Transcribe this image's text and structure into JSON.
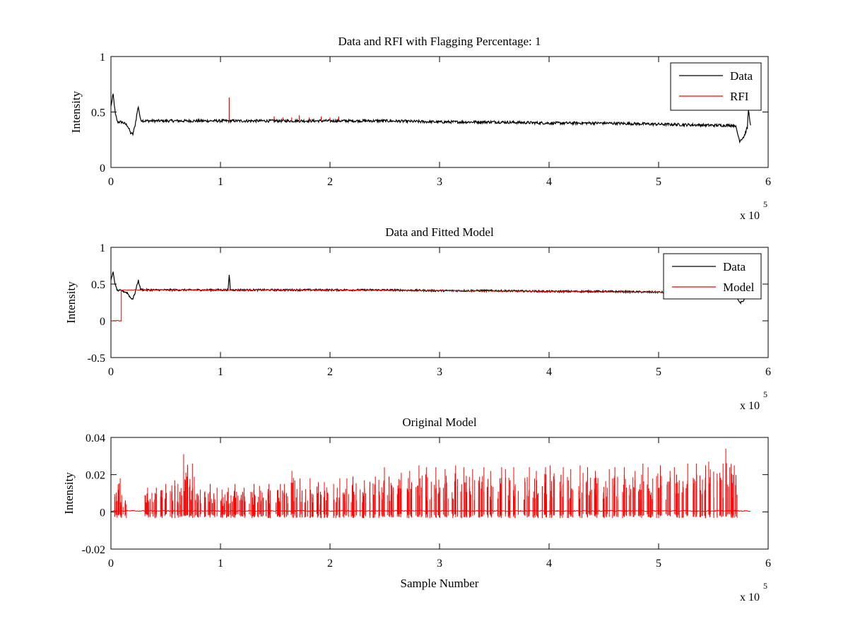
{
  "chart_data": [
    {
      "type": "line",
      "title": "Data and RFI with Flagging Percentage: 1",
      "xlabel": "",
      "ylabel": "Intensity",
      "xlim": [
        0,
        600000
      ],
      "ylim": [
        0,
        1
      ],
      "xticks": [
        0,
        1,
        2,
        3,
        4,
        5,
        6
      ],
      "xtick_labels": [
        "0",
        "1",
        "2",
        "3",
        "4",
        "5",
        "6"
      ],
      "yticks": [
        0,
        0.5,
        1
      ],
      "ytick_labels": [
        "0",
        "0.5",
        "1"
      ],
      "x_multiplier": "x 10",
      "x_multiplier_exp": "5",
      "legend_position": "top-right",
      "colors": {
        "data": "#000000",
        "rfi": "#ff0000"
      },
      "series": [
        {
          "name": "Data",
          "x": [
            0,
            2000,
            4000,
            6000,
            10000,
            15000,
            18000,
            20000,
            22000,
            24000,
            25000,
            27000,
            30000,
            50000,
            80000,
            100000,
            108000,
            110000,
            150000,
            200000,
            250000,
            300000,
            350000,
            400000,
            450000,
            500000,
            550000,
            570000,
            574000,
            578000,
            581000,
            582000,
            584000
          ],
          "y": [
            0.55,
            0.66,
            0.48,
            0.41,
            0.41,
            0.38,
            0.31,
            0.3,
            0.38,
            0.5,
            0.55,
            0.43,
            0.42,
            0.42,
            0.42,
            0.42,
            0.42,
            0.42,
            0.42,
            0.42,
            0.42,
            0.41,
            0.41,
            0.4,
            0.4,
            0.39,
            0.38,
            0.38,
            0.24,
            0.28,
            0.36,
            0.52,
            0.38
          ]
        },
        {
          "name": "RFI",
          "spikes": [
            {
              "x": 108000,
              "y0": 0.42,
              "y1": 0.63
            },
            {
              "x": 149000,
              "y0": 0.42,
              "y1": 0.46
            },
            {
              "x": 157000,
              "y0": 0.42,
              "y1": 0.45
            },
            {
              "x": 165000,
              "y0": 0.42,
              "y1": 0.45
            },
            {
              "x": 172000,
              "y0": 0.42,
              "y1": 0.47
            },
            {
              "x": 181000,
              "y0": 0.42,
              "y1": 0.45
            },
            {
              "x": 192000,
              "y0": 0.42,
              "y1": 0.46
            },
            {
              "x": 200000,
              "y0": 0.42,
              "y1": 0.45
            },
            {
              "x": 208000,
              "y0": 0.42,
              "y1": 0.46
            }
          ]
        }
      ]
    },
    {
      "type": "line",
      "title": "Data and Fitted Model",
      "xlabel": "",
      "ylabel": "Intensity",
      "xlim": [
        0,
        600000
      ],
      "ylim": [
        -0.5,
        1
      ],
      "xticks": [
        0,
        1,
        2,
        3,
        4,
        5,
        6
      ],
      "xtick_labels": [
        "0",
        "1",
        "2",
        "3",
        "4",
        "5",
        "6"
      ],
      "yticks": [
        -0.5,
        0,
        0.5,
        1
      ],
      "ytick_labels": [
        "-0.5",
        "0",
        "0.5",
        "1"
      ],
      "x_multiplier": "x 10",
      "x_multiplier_exp": "5",
      "legend_position": "top-right",
      "colors": {
        "data": "#000000",
        "model": "#ff0000"
      },
      "series": [
        {
          "name": "Data",
          "x": [
            0,
            2000,
            4000,
            6000,
            10000,
            15000,
            18000,
            20000,
            22000,
            24000,
            25000,
            27000,
            30000,
            50000,
            80000,
            100000,
            107000,
            108000,
            109000,
            150000,
            200000,
            250000,
            300000,
            350000,
            400000,
            450000,
            500000,
            550000,
            570000,
            574000,
            578000,
            581000,
            582000,
            584000
          ],
          "y": [
            0.55,
            0.66,
            0.48,
            0.41,
            0.41,
            0.38,
            0.31,
            0.3,
            0.38,
            0.5,
            0.55,
            0.43,
            0.42,
            0.42,
            0.42,
            0.42,
            0.42,
            0.63,
            0.42,
            0.42,
            0.42,
            0.42,
            0.41,
            0.41,
            0.4,
            0.4,
            0.39,
            0.38,
            0.38,
            0.24,
            0.28,
            0.36,
            0.52,
            0.38
          ]
        },
        {
          "name": "Model",
          "x": [
            0,
            9500,
            9500,
            12000,
            50000,
            100000,
            200000,
            300000,
            400000,
            500000,
            584000
          ],
          "y": [
            0,
            0,
            0.42,
            0.42,
            0.42,
            0.42,
            0.42,
            0.41,
            0.4,
            0.39,
            0.38
          ]
        }
      ]
    },
    {
      "type": "line",
      "title": "Original Model",
      "xlabel": "Sample Number",
      "ylabel": "Intensity",
      "xlim": [
        0,
        600000
      ],
      "ylim": [
        -0.02,
        0.04
      ],
      "xticks": [
        0,
        1,
        2,
        3,
        4,
        5,
        6
      ],
      "xtick_labels": [
        "0",
        "1",
        "2",
        "3",
        "4",
        "5",
        "6"
      ],
      "yticks": [
        -0.02,
        0,
        0.02,
        0.04
      ],
      "ytick_labels": [
        "-0.02",
        "0",
        "0.02",
        "0.04"
      ],
      "x_multiplier": "x 10",
      "x_multiplier_exp": "5",
      "colors": {
        "model": "#ff0000"
      },
      "series": [
        {
          "name": "",
          "x_range": [
            0,
            584000
          ],
          "baseline": 0.0005,
          "bursts_x": [
            5000,
            10000,
            32000,
            38000,
            47000,
            55000,
            61000,
            68000,
            73000,
            79000,
            87000,
            93000,
            100000,
            107000,
            113000,
            119000,
            128000,
            135000,
            143000,
            151000,
            158000,
            166000,
            174000,
            181000,
            189000,
            196000,
            205000,
            213000,
            221000,
            229000,
            238000,
            246000,
            254000,
            263000,
            272000,
            280000,
            289000,
            297000,
            305000,
            313000,
            321000,
            329000,
            337000,
            345000,
            353000,
            361000,
            369000,
            378000,
            386000,
            394000,
            402000,
            410000,
            418000,
            427000,
            435000,
            443000,
            451000,
            459000,
            467000,
            475000,
            483000,
            491000,
            499000,
            507000,
            515000,
            523000,
            531000,
            539000,
            547000,
            555000,
            563000,
            568000
          ],
          "bursts_peak": [
            0.018,
            0.009,
            0.013,
            0.013,
            0.015,
            0.017,
            0.015,
            0.031,
            0.026,
            0.012,
            0.015,
            0.013,
            0.012,
            0.013,
            0.015,
            0.013,
            0.015,
            0.014,
            0.015,
            0.015,
            0.015,
            0.022,
            0.018,
            0.018,
            0.016,
            0.016,
            0.018,
            0.018,
            0.019,
            0.017,
            0.019,
            0.024,
            0.019,
            0.021,
            0.022,
            0.025,
            0.024,
            0.024,
            0.023,
            0.025,
            0.024,
            0.023,
            0.024,
            0.022,
            0.024,
            0.023,
            0.024,
            0.024,
            0.022,
            0.024,
            0.025,
            0.024,
            0.023,
            0.025,
            0.024,
            0.022,
            0.023,
            0.024,
            0.024,
            0.022,
            0.026,
            0.024,
            0.025,
            0.022,
            0.024,
            0.026,
            0.026,
            0.025,
            0.027,
            0.026,
            0.034,
            0.025
          ],
          "min_value": -0.004
        }
      ]
    }
  ]
}
